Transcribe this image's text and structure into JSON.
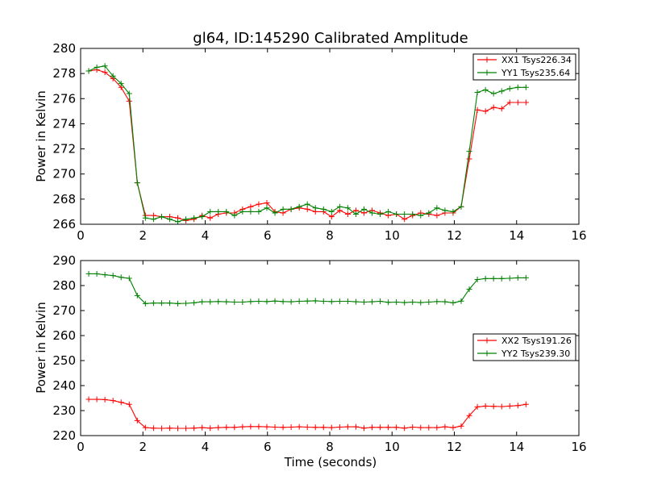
{
  "title": "gl64, ID:145290 Calibrated Amplitude",
  "colors": {
    "xx": "#ff0000",
    "yy": "#008000",
    "frame": "#000000",
    "background": "#ffffff"
  },
  "chart_data": [
    {
      "type": "line",
      "xlim": [
        0,
        16
      ],
      "ylim": [
        266,
        280
      ],
      "xticks": [
        0,
        2,
        4,
        6,
        8,
        10,
        12,
        14,
        16
      ],
      "yticks": [
        266,
        268,
        270,
        272,
        274,
        276,
        278,
        280
      ],
      "xlabel": "",
      "ylabel": "Power in Kelvin",
      "legend_position": "top-right",
      "x": [
        0.26,
        0.52,
        0.78,
        1.04,
        1.3,
        1.56,
        1.82,
        2.08,
        2.34,
        2.6,
        2.86,
        3.12,
        3.38,
        3.64,
        3.9,
        4.16,
        4.42,
        4.68,
        4.94,
        5.2,
        5.46,
        5.72,
        5.98,
        6.24,
        6.5,
        6.76,
        7.02,
        7.28,
        7.54,
        7.8,
        8.06,
        8.32,
        8.58,
        8.84,
        9.1,
        9.36,
        9.62,
        9.88,
        10.14,
        10.4,
        10.66,
        10.92,
        11.18,
        11.44,
        11.7,
        11.96,
        12.22,
        12.48,
        12.74,
        13.0,
        13.26,
        13.52,
        13.78,
        14.04,
        14.3
      ],
      "series": [
        {
          "name": "XX1 Tsys226.34",
          "color": "#ff0000",
          "values": [
            278.2,
            278.3,
            278.1,
            277.6,
            276.9,
            275.8,
            269.3,
            266.7,
            266.7,
            266.6,
            266.6,
            266.5,
            266.3,
            266.4,
            266.7,
            266.5,
            266.8,
            266.9,
            266.9,
            267.2,
            267.4,
            267.6,
            267.7,
            267.0,
            266.9,
            267.2,
            267.3,
            267.2,
            267.0,
            267.0,
            266.6,
            267.1,
            266.8,
            267.1,
            266.9,
            267.1,
            266.9,
            266.7,
            266.8,
            266.4,
            266.7,
            266.9,
            266.8,
            266.7,
            266.9,
            266.9,
            267.4,
            271.2,
            275.1,
            275.0,
            275.3,
            275.2,
            275.7,
            275.7,
            275.7
          ]
        },
        {
          "name": "YY1 Tsys235.64",
          "color": "#008000",
          "values": [
            278.2,
            278.5,
            278.6,
            277.8,
            277.2,
            276.4,
            269.3,
            266.5,
            266.4,
            266.6,
            266.4,
            266.2,
            266.4,
            266.5,
            266.6,
            267.0,
            267.0,
            267.0,
            266.7,
            267.0,
            267.0,
            267.0,
            267.3,
            266.9,
            267.2,
            267.2,
            267.4,
            267.6,
            267.3,
            267.2,
            267.0,
            267.4,
            267.3,
            266.8,
            267.2,
            266.9,
            266.8,
            267.0,
            266.8,
            266.8,
            266.8,
            266.7,
            266.9,
            267.3,
            267.1,
            267.0,
            267.4,
            271.8,
            276.5,
            276.7,
            276.4,
            276.6,
            276.8,
            276.9,
            276.9
          ]
        }
      ]
    },
    {
      "type": "line",
      "xlim": [
        0,
        16
      ],
      "ylim": [
        220,
        290
      ],
      "xticks": [
        0,
        2,
        4,
        6,
        8,
        10,
        12,
        14,
        16
      ],
      "yticks": [
        220,
        230,
        240,
        250,
        260,
        270,
        280,
        290
      ],
      "xlabel": "Time (seconds)",
      "ylabel": "Power in Kelvin",
      "legend_position": "center-right",
      "x": [
        0.26,
        0.52,
        0.78,
        1.04,
        1.3,
        1.56,
        1.82,
        2.08,
        2.34,
        2.6,
        2.86,
        3.12,
        3.38,
        3.64,
        3.9,
        4.16,
        4.42,
        4.68,
        4.94,
        5.2,
        5.46,
        5.72,
        5.98,
        6.24,
        6.5,
        6.76,
        7.02,
        7.28,
        7.54,
        7.8,
        8.06,
        8.32,
        8.58,
        8.84,
        9.1,
        9.36,
        9.62,
        9.88,
        10.14,
        10.4,
        10.66,
        10.92,
        11.18,
        11.44,
        11.7,
        11.96,
        12.22,
        12.48,
        12.74,
        13.0,
        13.26,
        13.52,
        13.78,
        14.04,
        14.3
      ],
      "series": [
        {
          "name": "XX2 Tsys191.26",
          "color": "#ff0000",
          "values": [
            234.5,
            234.5,
            234.4,
            234.0,
            233.3,
            232.5,
            226.0,
            223.2,
            223.0,
            222.9,
            223.0,
            222.9,
            222.9,
            223.0,
            223.2,
            223.0,
            223.2,
            223.3,
            223.3,
            223.5,
            223.6,
            223.6,
            223.5,
            223.4,
            223.3,
            223.4,
            223.5,
            223.4,
            223.3,
            223.3,
            223.2,
            223.4,
            223.5,
            223.5,
            223.0,
            223.3,
            223.3,
            223.3,
            223.3,
            223.0,
            223.4,
            223.2,
            223.2,
            223.2,
            223.5,
            223.2,
            223.8,
            228.0,
            231.5,
            231.8,
            231.7,
            231.6,
            231.8,
            232.0,
            232.5
          ]
        },
        {
          "name": "YY2 Tsys239.30",
          "color": "#008000",
          "values": [
            284.7,
            284.7,
            284.3,
            284.0,
            283.3,
            282.9,
            276.0,
            272.8,
            273.0,
            273.0,
            273.0,
            272.8,
            272.9,
            273.1,
            273.5,
            273.5,
            273.6,
            273.5,
            273.4,
            273.4,
            273.6,
            273.7,
            273.6,
            273.8,
            273.6,
            273.5,
            273.7,
            273.8,
            273.9,
            273.7,
            273.6,
            273.7,
            273.7,
            273.5,
            273.4,
            273.5,
            273.7,
            273.3,
            273.4,
            273.2,
            273.4,
            273.2,
            273.4,
            273.6,
            273.5,
            273.1,
            273.8,
            278.5,
            282.4,
            282.8,
            282.8,
            282.8,
            282.9,
            283.1,
            283.1
          ]
        }
      ]
    }
  ]
}
